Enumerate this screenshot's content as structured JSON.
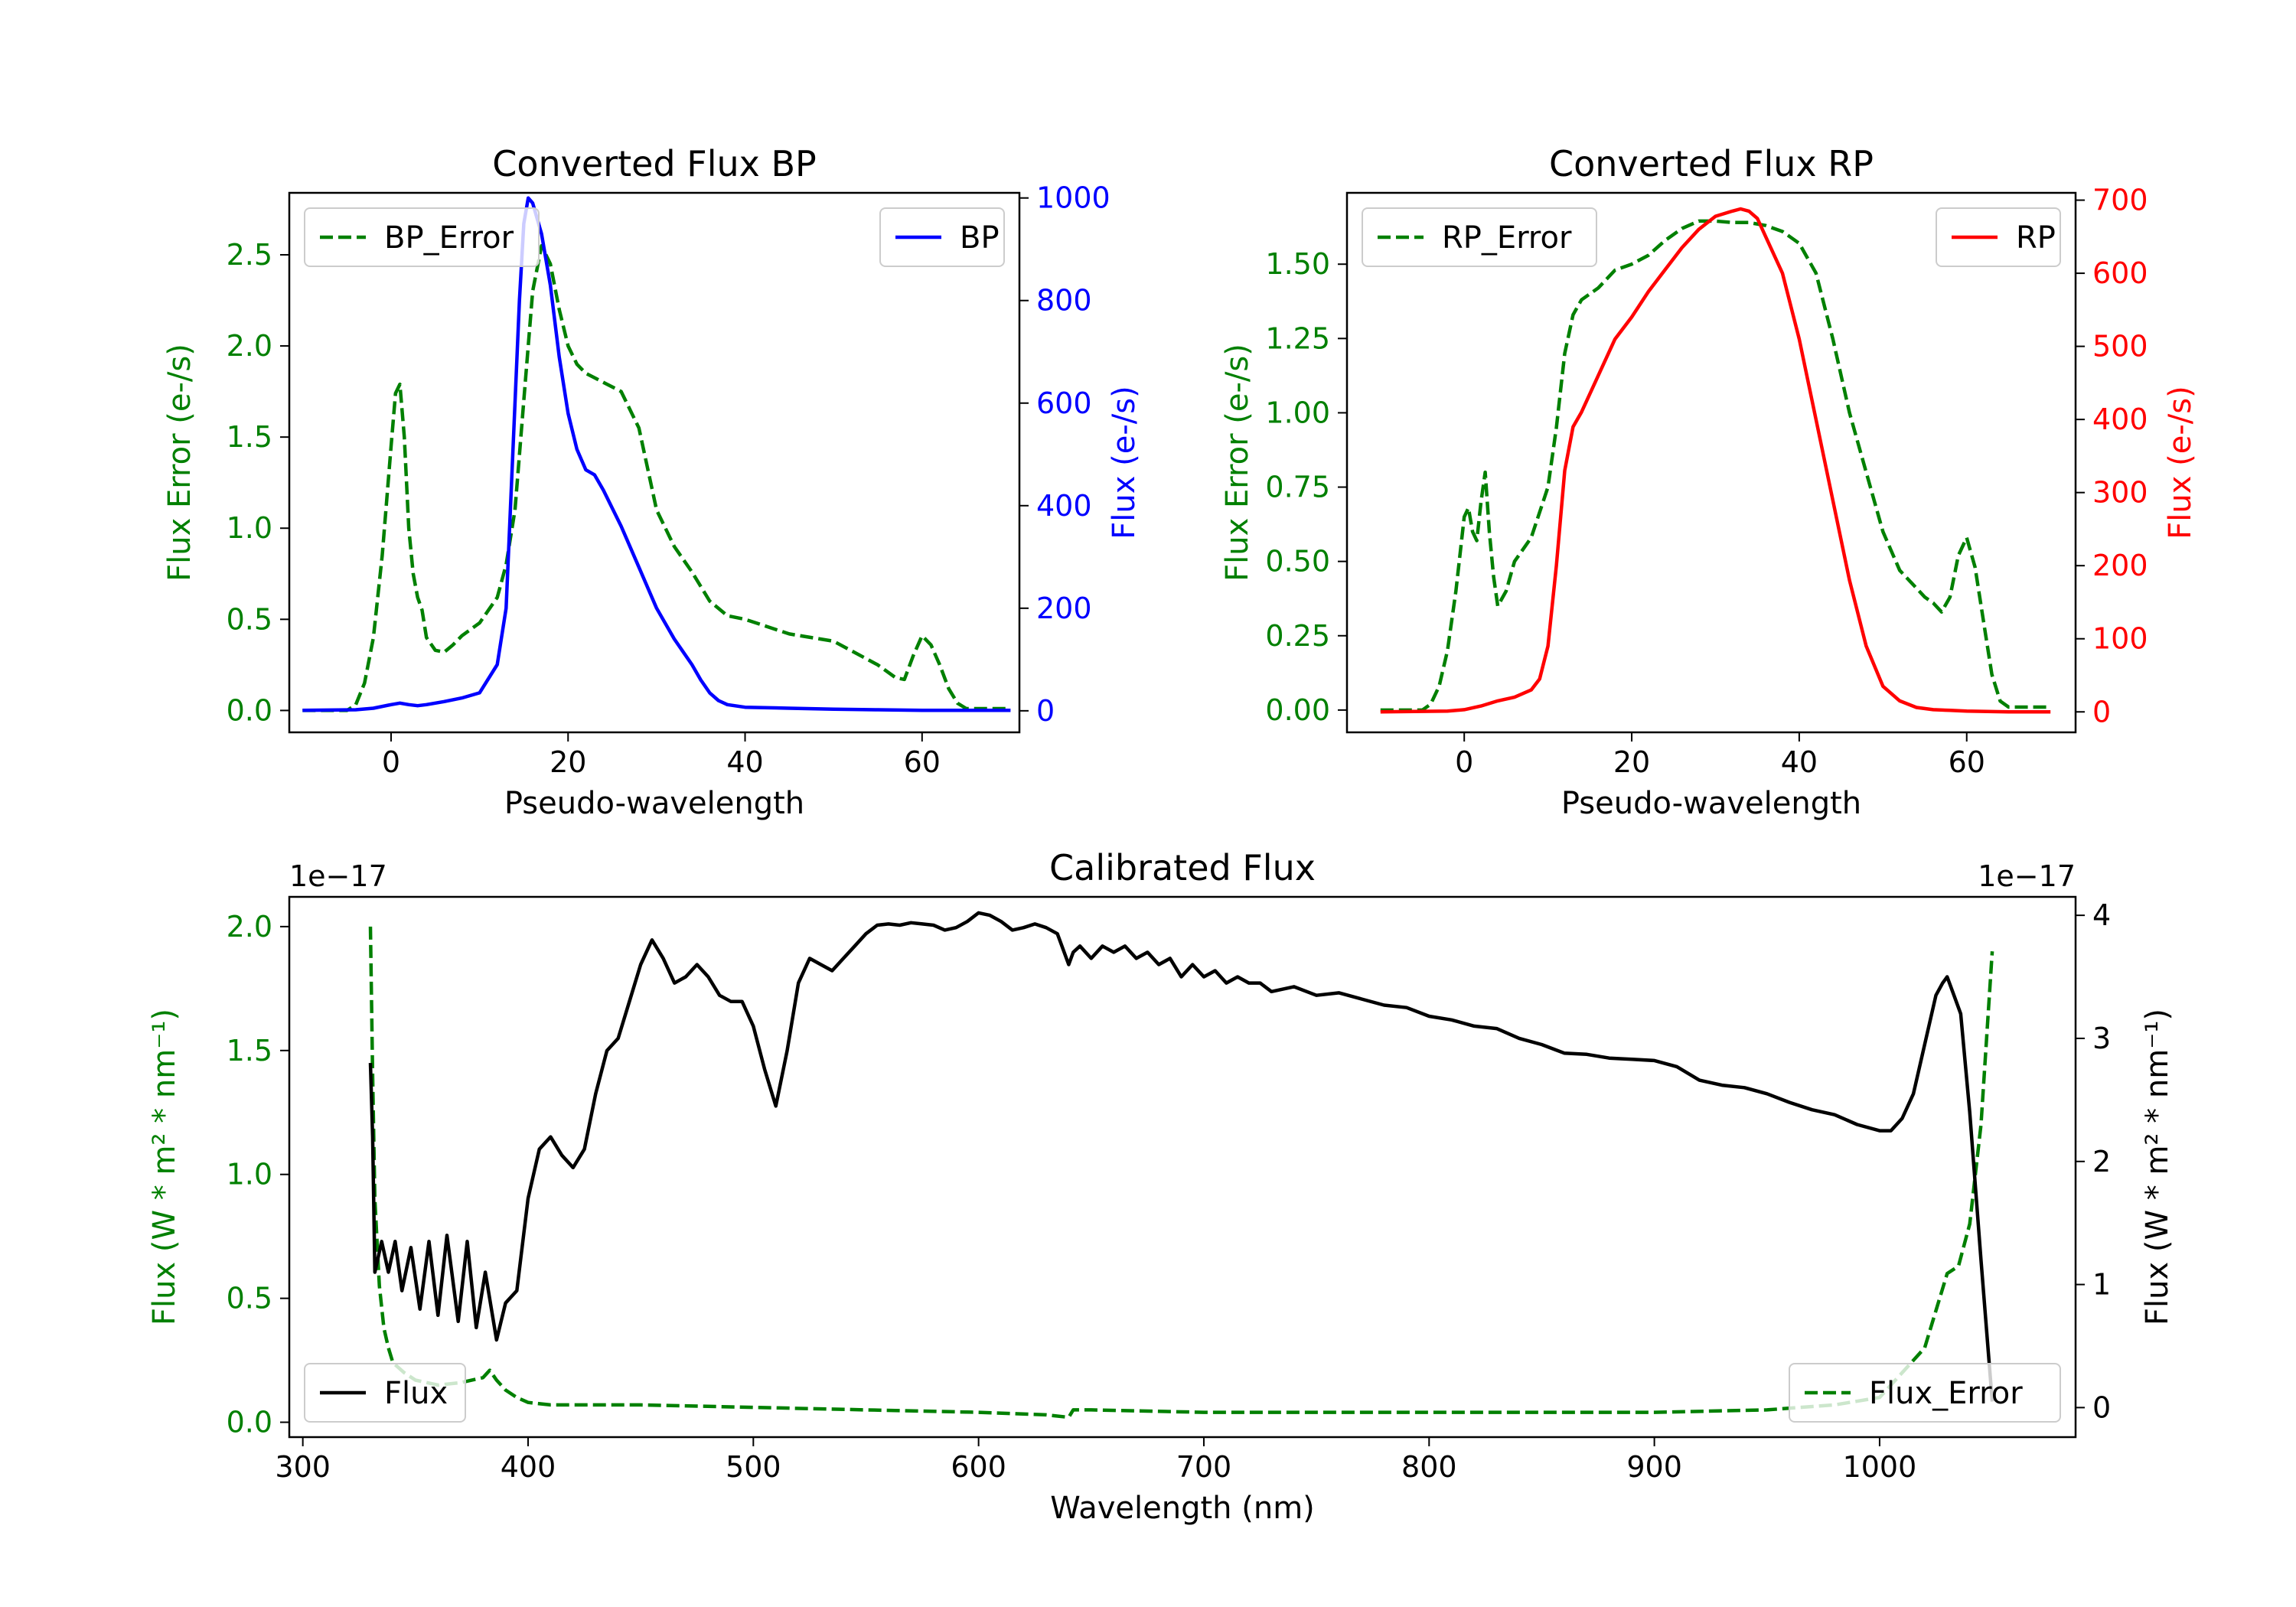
{
  "chart_data": [
    {
      "id": "bp",
      "type": "line",
      "title": "Converted Flux BP",
      "xlabel": "Pseudo-wavelength",
      "ylabel_left": "Flux Error (e-/s)",
      "ylabel_right": "Flux (e-/s)",
      "xlim": [
        -11.5,
        71
      ],
      "ylim_left": [
        -0.12,
        2.84
      ],
      "ylim_right": [
        -42,
        1010
      ],
      "xticks": [
        0,
        20,
        40,
        60
      ],
      "xtick_labels": [
        "0",
        "20",
        "40",
        "60"
      ],
      "yticks_left": [
        0,
        0.5,
        1.0,
        1.5,
        2.0,
        2.5
      ],
      "ytick_labels_left": [
        "0.0",
        "0.5",
        "1.0",
        "1.5",
        "2.0",
        "2.5"
      ],
      "yticks_right": [
        0,
        200,
        400,
        600,
        800,
        1000
      ],
      "ytick_labels_right": [
        "0",
        "200",
        "400",
        "600",
        "800",
        "1000"
      ],
      "series": [
        {
          "name": "BP_Error",
          "axis": "left",
          "color": "#008000",
          "dash": true,
          "x": [
            -10,
            -5,
            -4,
            -3,
            -2,
            -1,
            0,
            0.5,
            1,
            1.5,
            2,
            2.5,
            3,
            3.5,
            4,
            5,
            6,
            7,
            8,
            10,
            12,
            13,
            14,
            15,
            16,
            17,
            18,
            19,
            20,
            21,
            22,
            24,
            26,
            28,
            30,
            32,
            34,
            36,
            38,
            40,
            45,
            50,
            55,
            57,
            58,
            59,
            60,
            61,
            62,
            63,
            64,
            65,
            70
          ],
          "y": [
            0,
            0,
            0.03,
            0.15,
            0.4,
            0.85,
            1.45,
            1.74,
            1.79,
            1.5,
            1.0,
            0.75,
            0.62,
            0.55,
            0.4,
            0.33,
            0.32,
            0.36,
            0.41,
            0.48,
            0.62,
            0.8,
            1.1,
            1.7,
            2.3,
            2.55,
            2.45,
            2.2,
            2.0,
            1.9,
            1.85,
            1.8,
            1.75,
            1.55,
            1.1,
            0.9,
            0.76,
            0.6,
            0.52,
            0.5,
            0.42,
            0.38,
            0.25,
            0.18,
            0.17,
            0.3,
            0.41,
            0.36,
            0.25,
            0.12,
            0.04,
            0.01,
            0.01
          ]
        },
        {
          "name": "BP",
          "axis": "right",
          "color": "#0000ff",
          "dash": false,
          "x": [
            -10,
            -4,
            -2,
            0,
            1,
            2,
            3,
            4,
            6,
            8,
            10,
            12,
            13,
            14,
            14.5,
            15,
            15.5,
            16,
            17,
            18,
            19,
            20,
            21,
            22,
            23,
            24,
            26,
            28,
            30,
            32,
            34,
            35,
            36,
            37,
            38,
            40,
            45,
            50,
            55,
            60,
            65,
            70
          ],
          "y": [
            1,
            2,
            5,
            12,
            15,
            12,
            10,
            12,
            18,
            25,
            35,
            90,
            200,
            600,
            800,
            950,
            1000,
            990,
            930,
            830,
            690,
            580,
            510,
            470,
            460,
            430,
            360,
            280,
            200,
            140,
            90,
            60,
            35,
            20,
            12,
            7,
            5,
            3,
            2,
            1,
            1,
            1
          ]
        }
      ],
      "legend": [
        {
          "label": "BP_Error",
          "position": "upper-left"
        },
        {
          "label": "BP",
          "position": "upper-right"
        }
      ]
    },
    {
      "id": "rp",
      "type": "line",
      "title": "Converted Flux RP",
      "xlabel": "Pseudo-wavelength",
      "ylabel_left": "Flux Error (e-/s)",
      "ylabel_right": "Flux (e-/s)",
      "xlim": [
        -14,
        73
      ],
      "ylim_left": [
        -0.075,
        1.74
      ],
      "ylim_right": [
        -28,
        710
      ],
      "xticks": [
        0,
        20,
        40,
        60
      ],
      "xtick_labels": [
        "0",
        "20",
        "40",
        "60"
      ],
      "yticks_left": [
        0,
        0.25,
        0.5,
        0.75,
        1.0,
        1.25,
        1.5
      ],
      "ytick_labels_left": [
        "0.00",
        "0.25",
        "0.50",
        "0.75",
        "1.00",
        "1.25",
        "1.50"
      ],
      "yticks_right": [
        0,
        100,
        200,
        300,
        400,
        500,
        600,
        700
      ],
      "ytick_labels_right": [
        "0",
        "100",
        "200",
        "300",
        "400",
        "500",
        "600",
        "700"
      ],
      "series": [
        {
          "name": "RP_Error",
          "axis": "left",
          "color": "#008000",
          "dash": true,
          "x": [
            -10,
            -5,
            -4,
            -3,
            -2,
            -1,
            0,
            0.5,
            1,
            1.5,
            2,
            2.5,
            3,
            3.5,
            4,
            5,
            6,
            8,
            10,
            11,
            12,
            13,
            14,
            16,
            18,
            20,
            22,
            24,
            26,
            28,
            30,
            32,
            34,
            36,
            38,
            40,
            42,
            44,
            46,
            48,
            50,
            52,
            54,
            55,
            56,
            57,
            58,
            59,
            60,
            61,
            62,
            63,
            64,
            65,
            70
          ],
          "y": [
            0,
            0,
            0.02,
            0.08,
            0.2,
            0.4,
            0.65,
            0.68,
            0.6,
            0.57,
            0.7,
            0.8,
            0.6,
            0.45,
            0.35,
            0.4,
            0.5,
            0.58,
            0.75,
            0.95,
            1.2,
            1.33,
            1.38,
            1.42,
            1.48,
            1.5,
            1.53,
            1.58,
            1.62,
            1.645,
            1.645,
            1.64,
            1.64,
            1.63,
            1.61,
            1.57,
            1.47,
            1.25,
            1.0,
            0.8,
            0.6,
            0.47,
            0.41,
            0.38,
            0.36,
            0.33,
            0.38,
            0.52,
            0.58,
            0.48,
            0.3,
            0.12,
            0.03,
            0.01,
            0.01
          ]
        },
        {
          "name": "RP",
          "axis": "right",
          "color": "#ff0000",
          "dash": false,
          "x": [
            -10,
            -2,
            0,
            2,
            4,
            6,
            8,
            9,
            10,
            11,
            12,
            13,
            14,
            16,
            18,
            20,
            22,
            24,
            26,
            28,
            30,
            32,
            33,
            34,
            35,
            36,
            38,
            40,
            42,
            44,
            46,
            48,
            50,
            52,
            54,
            56,
            58,
            60,
            65,
            70
          ],
          "y": [
            0,
            1,
            3,
            8,
            15,
            20,
            30,
            45,
            90,
            200,
            330,
            390,
            410,
            460,
            510,
            540,
            575,
            605,
            635,
            660,
            678,
            685,
            688,
            685,
            675,
            650,
            600,
            510,
            400,
            290,
            180,
            90,
            35,
            15,
            6,
            3,
            2,
            1,
            0,
            0
          ]
        }
      ],
      "legend": [
        {
          "label": "RP_Error",
          "position": "upper-left"
        },
        {
          "label": "RP",
          "position": "upper-right"
        }
      ]
    },
    {
      "id": "cal",
      "type": "line",
      "title": "Calibrated Flux",
      "xlabel": "Wavelength (nm)",
      "ylabel_left": "Flux (W * m² * nm⁻¹)",
      "ylabel_right": "Flux (W * m² * nm⁻¹)",
      "offset_left": "1e−17",
      "offset_right": "1e−17",
      "xlim": [
        294,
        1087
      ],
      "ylim_left": [
        -0.06,
        2.12
      ],
      "ylim_right": [
        -0.24,
        4.15
      ],
      "xticks": [
        300,
        400,
        500,
        600,
        700,
        800,
        900,
        1000
      ],
      "xtick_labels": [
        "300",
        "400",
        "500",
        "600",
        "700",
        "800",
        "900",
        "1000"
      ],
      "yticks_left": [
        0,
        0.5,
        1.0,
        1.5,
        2.0
      ],
      "ytick_labels_left": [
        "0.0",
        "0.5",
        "1.0",
        "1.5",
        "2.0"
      ],
      "yticks_right": [
        0,
        1,
        2,
        3,
        4
      ],
      "ytick_labels_right": [
        "0",
        "1",
        "2",
        "3",
        "4"
      ],
      "series": [
        {
          "name": "Flux_Error",
          "axis": "left",
          "color": "#008000",
          "dash": true,
          "x": [
            330,
            331,
            332,
            334,
            336,
            338,
            340,
            345,
            350,
            360,
            370,
            380,
            383,
            386,
            390,
            395,
            400,
            410,
            450,
            500,
            550,
            600,
            630,
            640,
            642,
            650,
            700,
            750,
            800,
            850,
            900,
            950,
            980,
            1000,
            1010,
            1015,
            1020,
            1025,
            1030,
            1035,
            1040,
            1045,
            1050
          ],
          "y": [
            2.0,
            1.4,
            0.9,
            0.55,
            0.38,
            0.3,
            0.24,
            0.2,
            0.17,
            0.15,
            0.16,
            0.18,
            0.21,
            0.17,
            0.13,
            0.1,
            0.08,
            0.07,
            0.07,
            0.06,
            0.05,
            0.04,
            0.03,
            0.02,
            0.05,
            0.05,
            0.04,
            0.04,
            0.04,
            0.04,
            0.04,
            0.05,
            0.07,
            0.1,
            0.2,
            0.25,
            0.3,
            0.45,
            0.6,
            0.63,
            0.8,
            1.2,
            1.9
          ]
        },
        {
          "name": "Flux",
          "axis": "right",
          "color": "#000000",
          "dash": false,
          "x": [
            330,
            331,
            332,
            335,
            338,
            341,
            344,
            348,
            352,
            356,
            360,
            364,
            369,
            373,
            377,
            381,
            386,
            390,
            395,
            400,
            405,
            410,
            415,
            420,
            425,
            430,
            435,
            440,
            445,
            450,
            455,
            460,
            465,
            470,
            475,
            480,
            485,
            490,
            495,
            500,
            505,
            510,
            515,
            520,
            525,
            530,
            535,
            540,
            545,
            550,
            555,
            560,
            565,
            570,
            575,
            580,
            585,
            590,
            595,
            600,
            605,
            610,
            615,
            620,
            625,
            630,
            635,
            640,
            642,
            645,
            650,
            655,
            660,
            665,
            670,
            675,
            680,
            685,
            690,
            695,
            700,
            705,
            710,
            715,
            720,
            725,
            730,
            740,
            750,
            760,
            770,
            780,
            790,
            800,
            810,
            820,
            830,
            840,
            850,
            860,
            870,
            880,
            890,
            900,
            910,
            920,
            930,
            940,
            950,
            960,
            970,
            980,
            990,
            1000,
            1005,
            1010,
            1015,
            1020,
            1025,
            1028,
            1030,
            1033,
            1036,
            1040,
            1045,
            1050
          ],
          "y": [
            2.8,
            2.2,
            1.1,
            1.35,
            1.1,
            1.35,
            0.95,
            1.3,
            0.8,
            1.35,
            0.75,
            1.4,
            0.7,
            1.35,
            0.65,
            1.1,
            0.55,
            0.85,
            0.95,
            1.7,
            2.1,
            2.2,
            2.05,
            1.95,
            2.1,
            2.55,
            2.9,
            3.0,
            3.3,
            3.6,
            3.8,
            3.65,
            3.45,
            3.5,
            3.6,
            3.5,
            3.35,
            3.3,
            3.3,
            3.1,
            2.75,
            2.45,
            2.9,
            3.45,
            3.65,
            3.6,
            3.55,
            3.65,
            3.75,
            3.85,
            3.92,
            3.93,
            3.92,
            3.94,
            3.93,
            3.92,
            3.88,
            3.9,
            3.95,
            4.02,
            4.0,
            3.95,
            3.88,
            3.9,
            3.93,
            3.9,
            3.85,
            3.6,
            3.7,
            3.75,
            3.65,
            3.75,
            3.7,
            3.75,
            3.65,
            3.7,
            3.6,
            3.65,
            3.5,
            3.6,
            3.5,
            3.55,
            3.45,
            3.5,
            3.45,
            3.45,
            3.38,
            3.42,
            3.35,
            3.37,
            3.32,
            3.27,
            3.25,
            3.18,
            3.15,
            3.1,
            3.08,
            3.0,
            2.95,
            2.88,
            2.87,
            2.84,
            2.83,
            2.82,
            2.77,
            2.66,
            2.62,
            2.6,
            2.55,
            2.48,
            2.42,
            2.38,
            2.3,
            2.25,
            2.25,
            2.35,
            2.55,
            2.95,
            3.35,
            3.45,
            3.5,
            3.35,
            3.2,
            2.4,
            1.2,
            0.05
          ]
        }
      ],
      "legend": [
        {
          "label": "Flux",
          "position": "lower-left"
        },
        {
          "label": "Flux_Error",
          "position": "lower-right"
        }
      ]
    }
  ]
}
